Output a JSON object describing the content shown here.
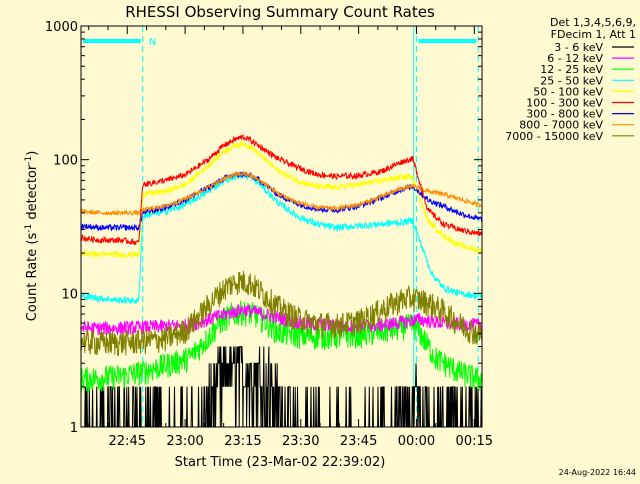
{
  "chart_data": {
    "type": "line",
    "title": "RHESSI Observing Summary Count Rates",
    "xlabel": "Start Time (23-Mar-02 22:39:02)",
    "ylabel_main": "Count Rate (s",
    "ylabel_sup1": "-1",
    "ylabel_mid": " detector",
    "ylabel_sup2": "-1",
    "ylabel_end": ")",
    "yscale": "log",
    "ylim": [
      1,
      1000
    ],
    "xlim_min": [
      -6,
      98
    ],
    "x_unit": "minutes after 22:39:02",
    "y_ticks": [
      {
        "value": 1,
        "label": "1"
      },
      {
        "value": 10,
        "label": "10"
      },
      {
        "value": 100,
        "label": "100"
      },
      {
        "value": 1000,
        "label": "1000"
      }
    ],
    "x_ticks": [
      {
        "value": 6,
        "label": "22:45"
      },
      {
        "value": 21,
        "label": "23:00"
      },
      {
        "value": 36,
        "label": "23:15"
      },
      {
        "value": 51,
        "label": "23:30"
      },
      {
        "value": 66,
        "label": "23:45"
      },
      {
        "value": 81,
        "label": "00:00"
      },
      {
        "value": 96,
        "label": "00:15"
      }
    ],
    "legend_header": [
      "Det 1,3,4,5,6,9,",
      "FDecim 1, Att 1"
    ],
    "night_marker_label": "N",
    "night_intervals_min": [
      [
        -6,
        10
      ],
      [
        81,
        97
      ]
    ],
    "vertical_markers_min": [
      10,
      81,
      97
    ],
    "series": [
      {
        "name": "3 - 6 keV",
        "color": "#000000",
        "points": [
          [
            -6,
            1.2
          ],
          [
            -1,
            1.3
          ],
          [
            4,
            1.4
          ],
          [
            10,
            1.2
          ],
          [
            22,
            1.1
          ],
          [
            27,
            1.8
          ],
          [
            30,
            2.6
          ],
          [
            33,
            3.0
          ],
          [
            36,
            3.1
          ],
          [
            39,
            3.0
          ],
          [
            42,
            2.6
          ],
          [
            45,
            1.8
          ],
          [
            50,
            1.2
          ],
          [
            60,
            1.0
          ],
          [
            72,
            1.1
          ],
          [
            79,
            1.4
          ],
          [
            81,
            1.8
          ],
          [
            86,
            1.6
          ],
          [
            92,
            1.5
          ],
          [
            97,
            1.4
          ]
        ]
      },
      {
        "name": "6 - 12 keV",
        "color": "#ff00ff",
        "points": [
          [
            -6,
            5.5
          ],
          [
            4,
            5.5
          ],
          [
            10,
            5.6
          ],
          [
            22,
            5.8
          ],
          [
            27,
            6.4
          ],
          [
            33,
            7.2
          ],
          [
            36,
            7.6
          ],
          [
            39,
            7.3
          ],
          [
            45,
            6.6
          ],
          [
            52,
            6.0
          ],
          [
            62,
            5.7
          ],
          [
            72,
            5.8
          ],
          [
            79,
            6.2
          ],
          [
            81,
            6.4
          ],
          [
            88,
            6.0
          ],
          [
            97,
            5.8
          ]
        ]
      },
      {
        "name": "12 - 25 keV",
        "color": "#00ff00",
        "points": [
          [
            -6,
            2.3
          ],
          [
            4,
            2.4
          ],
          [
            10,
            2.6
          ],
          [
            22,
            3.3
          ],
          [
            27,
            4.7
          ],
          [
            30,
            6.1
          ],
          [
            33,
            7.0
          ],
          [
            36,
            7.3
          ],
          [
            39,
            7.0
          ],
          [
            42,
            6.2
          ],
          [
            45,
            5.2
          ],
          [
            52,
            4.8
          ],
          [
            60,
            4.8
          ],
          [
            68,
            5.0
          ],
          [
            75,
            5.4
          ],
          [
            79,
            5.8
          ],
          [
            81,
            5.6
          ],
          [
            86,
            3.3
          ],
          [
            92,
            2.6
          ],
          [
            97,
            2.3
          ]
        ]
      },
      {
        "name": "25 - 50 keV",
        "color": "#00ffff",
        "points": [
          [
            -6,
            9.5
          ],
          [
            -1,
            9.2
          ],
          [
            4,
            8.9
          ],
          [
            9,
            8.8
          ],
          [
            10,
            38
          ],
          [
            16,
            41
          ],
          [
            21,
            46
          ],
          [
            27,
            58
          ],
          [
            31,
            70
          ],
          [
            34,
            75
          ],
          [
            36,
            77
          ],
          [
            38,
            74
          ],
          [
            41,
            63
          ],
          [
            45,
            48
          ],
          [
            50,
            38
          ],
          [
            55,
            33
          ],
          [
            60,
            31
          ],
          [
            66,
            32
          ],
          [
            72,
            33
          ],
          [
            77,
            34
          ],
          [
            80,
            35
          ],
          [
            81,
            29
          ],
          [
            85,
            14
          ],
          [
            88,
            11
          ],
          [
            92,
            10
          ],
          [
            97,
            9.6
          ]
        ]
      },
      {
        "name": "50 - 100 keV",
        "color": "#ffff00",
        "points": [
          [
            -6,
            20
          ],
          [
            -1,
            19.5
          ],
          [
            4,
            19.5
          ],
          [
            9,
            19.5
          ],
          [
            10,
            55
          ],
          [
            16,
            58
          ],
          [
            21,
            65
          ],
          [
            27,
            90
          ],
          [
            31,
            115
          ],
          [
            34,
            128
          ],
          [
            36,
            132
          ],
          [
            38,
            125
          ],
          [
            41,
            105
          ],
          [
            45,
            83
          ],
          [
            50,
            70
          ],
          [
            55,
            63
          ],
          [
            60,
            62
          ],
          [
            66,
            65
          ],
          [
            72,
            70
          ],
          [
            77,
            74
          ],
          [
            80,
            75
          ],
          [
            81,
            60
          ],
          [
            84,
            35
          ],
          [
            88,
            27
          ],
          [
            92,
            23
          ],
          [
            97,
            21
          ]
        ]
      },
      {
        "name": "100 - 300 keV",
        "color": "#ff0000",
        "points": [
          [
            -6,
            26
          ],
          [
            -1,
            25
          ],
          [
            4,
            25
          ],
          [
            9,
            24
          ],
          [
            10,
            65
          ],
          [
            16,
            70
          ],
          [
            21,
            77
          ],
          [
            27,
            100
          ],
          [
            31,
            128
          ],
          [
            34,
            142
          ],
          [
            36,
            148
          ],
          [
            38,
            140
          ],
          [
            41,
            122
          ],
          [
            45,
            102
          ],
          [
            50,
            88
          ],
          [
            55,
            78
          ],
          [
            60,
            75
          ],
          [
            66,
            76
          ],
          [
            72,
            82
          ],
          [
            77,
            96
          ],
          [
            80,
            102
          ],
          [
            81,
            82
          ],
          [
            84,
            42
          ],
          [
            88,
            33
          ],
          [
            92,
            30
          ],
          [
            97,
            28
          ]
        ]
      },
      {
        "name": "300 - 800 keV",
        "color": "#0000ff",
        "points": [
          [
            -6,
            32
          ],
          [
            -1,
            31
          ],
          [
            4,
            31
          ],
          [
            9,
            31
          ],
          [
            10,
            40
          ],
          [
            16,
            44
          ],
          [
            21,
            50
          ],
          [
            27,
            62
          ],
          [
            31,
            72
          ],
          [
            34,
            77
          ],
          [
            36,
            78
          ],
          [
            38,
            76
          ],
          [
            41,
            68
          ],
          [
            45,
            55
          ],
          [
            50,
            47
          ],
          [
            55,
            43
          ],
          [
            60,
            42
          ],
          [
            66,
            45
          ],
          [
            72,
            52
          ],
          [
            77,
            60
          ],
          [
            80,
            63
          ],
          [
            81,
            60
          ],
          [
            84,
            50
          ],
          [
            88,
            45
          ],
          [
            92,
            40
          ],
          [
            97,
            36
          ]
        ]
      },
      {
        "name": "800 - 7000 keV",
        "color": "#ff8c00",
        "points": [
          [
            -6,
            41
          ],
          [
            -1,
            40
          ],
          [
            4,
            40
          ],
          [
            9,
            40
          ],
          [
            10,
            42
          ],
          [
            16,
            45
          ],
          [
            21,
            51
          ],
          [
            27,
            62
          ],
          [
            31,
            72
          ],
          [
            34,
            77
          ],
          [
            36,
            79
          ],
          [
            38,
            76
          ],
          [
            41,
            68
          ],
          [
            45,
            56
          ],
          [
            50,
            48
          ],
          [
            55,
            44
          ],
          [
            60,
            43
          ],
          [
            66,
            46
          ],
          [
            72,
            53
          ],
          [
            77,
            61
          ],
          [
            80,
            63
          ],
          [
            81,
            62
          ],
          [
            84,
            58
          ],
          [
            88,
            55
          ],
          [
            92,
            51
          ],
          [
            97,
            46
          ]
        ]
      },
      {
        "name": "7000 - 15000 keV",
        "color": "#808000",
        "points": [
          [
            -6,
            4.4
          ],
          [
            -1,
            4.3
          ],
          [
            4,
            4.3
          ],
          [
            9,
            4.4
          ],
          [
            10,
            4.4
          ],
          [
            16,
            4.6
          ],
          [
            21,
            5.3
          ],
          [
            25,
            7.0
          ],
          [
            29,
            9.5
          ],
          [
            32,
            11.5
          ],
          [
            35,
            12.5
          ],
          [
            38,
            12.0
          ],
          [
            41,
            10.2
          ],
          [
            45,
            8.0
          ],
          [
            50,
            6.6
          ],
          [
            55,
            6.0
          ],
          [
            60,
            5.8
          ],
          [
            66,
            6.2
          ],
          [
            72,
            7.6
          ],
          [
            77,
            9.0
          ],
          [
            80,
            9.3
          ],
          [
            84,
            8.6
          ],
          [
            88,
            7.4
          ],
          [
            92,
            6.0
          ],
          [
            97,
            5.0
          ]
        ]
      }
    ]
  },
  "footer": {
    "timestamp": "24-Aug-2022 16:44"
  }
}
